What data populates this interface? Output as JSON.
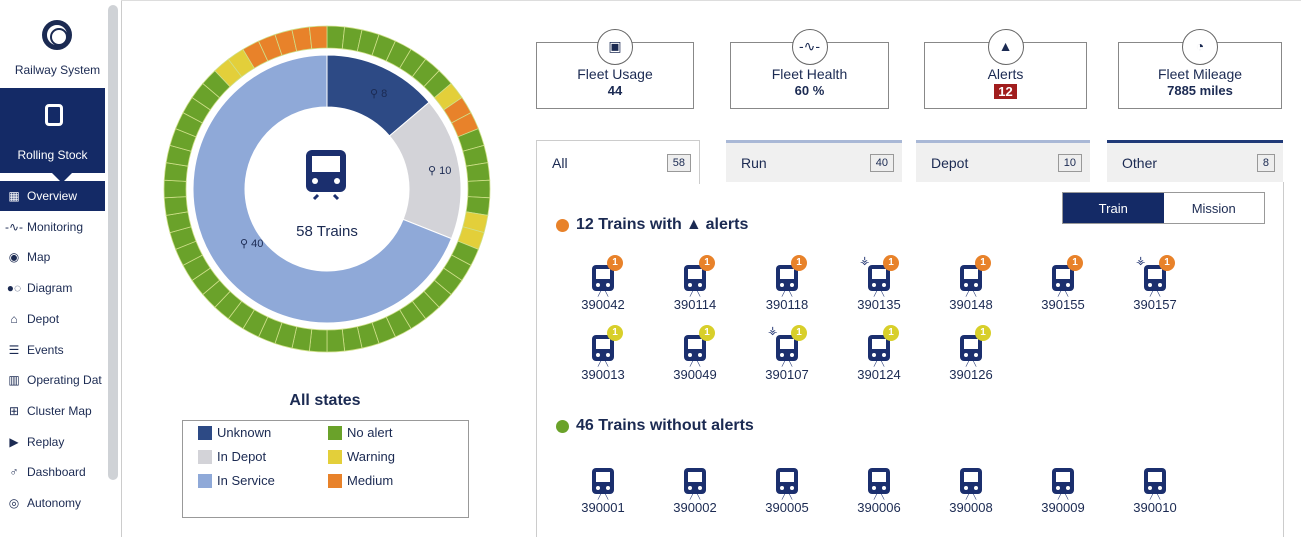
{
  "sidebar": {
    "app_title": "Railway System",
    "section": "Rolling Stock",
    "items": [
      {
        "label": "Overview",
        "icon": "overview-icon"
      },
      {
        "label": "Monitoring",
        "icon": "pulse-icon"
      },
      {
        "label": "Map",
        "icon": "map-pin-icon"
      },
      {
        "label": "Diagram",
        "icon": "diagram-icon"
      },
      {
        "label": "Depot",
        "icon": "depot-icon"
      },
      {
        "label": "Events",
        "icon": "list-icon"
      },
      {
        "label": "Operating Dat",
        "icon": "bar-chart-icon"
      },
      {
        "label": "Cluster Map",
        "icon": "cluster-map-icon"
      },
      {
        "label": "Replay",
        "icon": "play-icon"
      },
      {
        "label": "Dashboard",
        "icon": "dashboard-icon"
      },
      {
        "label": "Autonomy",
        "icon": "autonomy-icon"
      }
    ]
  },
  "chart_data": {
    "type": "pie",
    "center_label": "58 Trains",
    "inner": {
      "categories": [
        "Unknown",
        "In Depot",
        "In Service"
      ],
      "values": [
        8,
        10,
        40
      ],
      "labels": [
        "8",
        "10",
        "40"
      ]
    },
    "outer": {
      "segments": [
        "g",
        "g",
        "g",
        "g",
        "g",
        "g",
        "g",
        "g",
        "y",
        "o",
        "o",
        "g",
        "g",
        "g",
        "g",
        "g",
        "y",
        "y",
        "g",
        "g",
        "g",
        "g",
        "g",
        "g",
        "g",
        "g",
        "g",
        "g",
        "g",
        "g",
        "g",
        "g",
        "g",
        "g",
        "g",
        "g",
        "g",
        "g",
        "g",
        "g",
        "g",
        "g",
        "g",
        "g",
        "g",
        "g",
        "g",
        "g",
        "g",
        "g",
        "g",
        "y",
        "y",
        "o",
        "o",
        "o",
        "o",
        "o"
      ]
    },
    "legend_title": "All states",
    "legend": [
      {
        "label": "Unknown",
        "color": "#2d4a85"
      },
      {
        "label": "No alert",
        "color": "#6aa22a"
      },
      {
        "label": "In Depot",
        "color": "#d3d3d8"
      },
      {
        "label": "Warning",
        "color": "#e3cf3a"
      },
      {
        "label": "In Service",
        "color": "#8fa9d8"
      },
      {
        "label": "Medium",
        "color": "#e8822a"
      }
    ]
  },
  "kpis": [
    {
      "label": "Fleet Usage",
      "value": "44",
      "icon": "train-icon"
    },
    {
      "label": "Fleet Health",
      "value": "60 %",
      "icon": "pulse-icon"
    },
    {
      "label": "Alerts",
      "value": "12",
      "icon": "warning-icon"
    },
    {
      "label": "Fleet Mileage",
      "value": "7885 miles",
      "icon": "speedometer-icon"
    }
  ],
  "tabs": [
    {
      "label": "All",
      "count": "58"
    },
    {
      "label": "Run",
      "count": "40"
    },
    {
      "label": "Depot",
      "count": "10"
    },
    {
      "label": "Other",
      "count": "8"
    }
  ],
  "toggle": {
    "train": "Train",
    "mission": "Mission"
  },
  "alerts_section": {
    "prefix": "12 Trains with",
    "suffix": "alerts",
    "color": "#e8822a"
  },
  "no_alerts_section": {
    "title": "46 Trains without alerts",
    "color": "#6aa22a"
  },
  "alert_trains": [
    {
      "id": "390042",
      "badge": "1",
      "level": "medium"
    },
    {
      "id": "390114",
      "badge": "1",
      "level": "medium"
    },
    {
      "id": "390118",
      "badge": "1",
      "level": "medium"
    },
    {
      "id": "390135",
      "badge": "1",
      "level": "medium",
      "antenna": true
    },
    {
      "id": "390148",
      "badge": "1",
      "level": "medium"
    },
    {
      "id": "390155",
      "badge": "1",
      "level": "medium"
    },
    {
      "id": "390157",
      "badge": "1",
      "level": "medium",
      "antenna": true
    },
    {
      "id": "390013",
      "badge": "1",
      "level": "warning"
    },
    {
      "id": "390049",
      "badge": "1",
      "level": "warning"
    },
    {
      "id": "390107",
      "badge": "1",
      "level": "warning",
      "antenna": true
    },
    {
      "id": "390124",
      "badge": "1",
      "level": "warning"
    },
    {
      "id": "390126",
      "badge": "1",
      "level": "warning"
    }
  ],
  "ok_trains": [
    {
      "id": "390001"
    },
    {
      "id": "390002"
    },
    {
      "id": "390005"
    },
    {
      "id": "390006"
    },
    {
      "id": "390008"
    },
    {
      "id": "390009"
    },
    {
      "id": "390010"
    }
  ]
}
